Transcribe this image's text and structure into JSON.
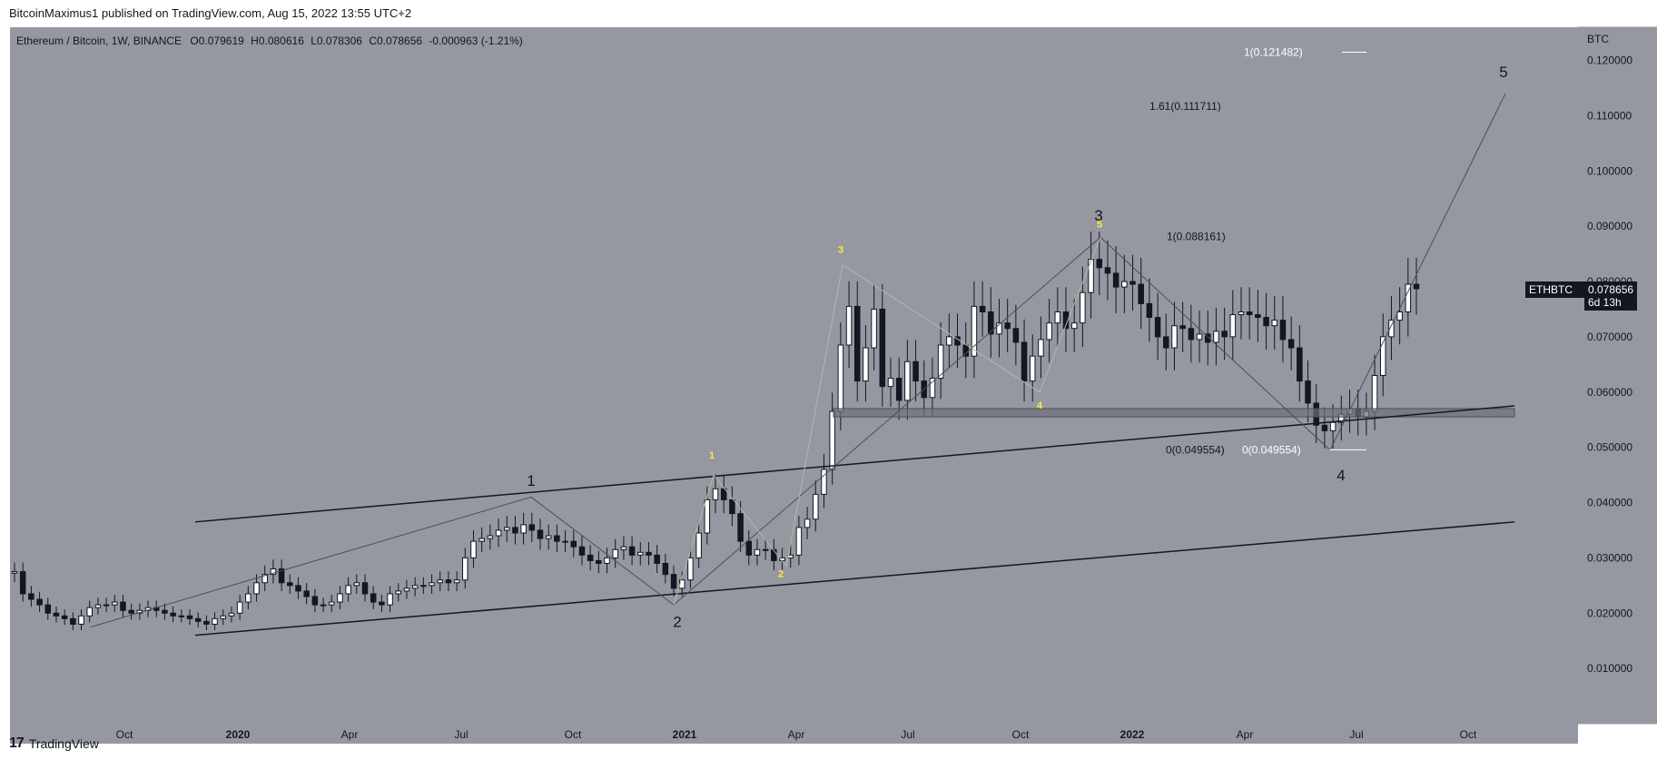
{
  "header": {
    "publisher": "BitcoinMaximus1 published on TradingView.com, Aug 15, 2022 13:55 UTC+2"
  },
  "legend": {
    "symbol": "Ethereum / Bitcoin, 1W, BINANCE",
    "open_label": "O",
    "open": "0.079619",
    "high_label": "H",
    "high": "0.080616",
    "low_label": "L",
    "low": "0.078306",
    "close_label": "C",
    "close": "0.078656",
    "change": "-0.000963 (-1.21%)"
  },
  "axis": {
    "currency": "BTC",
    "ticks": [
      "0.120000",
      "0.110000",
      "0.100000",
      "0.090000",
      "0.080000",
      "0.070000",
      "0.060000",
      "0.050000",
      "0.040000",
      "0.030000",
      "0.020000",
      "0.010000"
    ],
    "x_ticks": [
      "Oct",
      "2020",
      "Apr",
      "Jul",
      "Oct",
      "2021",
      "Apr",
      "Jul",
      "Oct",
      "2022",
      "Apr",
      "Jul",
      "Oct"
    ]
  },
  "price_label": {
    "symbol": "ETHBTC",
    "price": "0.078656",
    "countdown": "6d 13h"
  },
  "fib_labels": {
    "f1": "1(0.121482)",
    "f161": "1.61(0.111711)",
    "f1b": "1(0.088161)",
    "f0a": "0(0.049554)",
    "f0b": "0(0.049554)"
  },
  "wave_labels": {
    "main": [
      "1",
      "2",
      "3",
      "4",
      "5"
    ],
    "sub": [
      "1",
      "2",
      "3",
      "4",
      "5"
    ]
  },
  "footer": {
    "brand": "TradingView"
  },
  "colors": {
    "bg": "#9598a1",
    "up": "#ffffff",
    "down": "#131722",
    "wick": "#131722",
    "yellow": "#ffeb3b"
  },
  "chart_data": {
    "type": "candlestick",
    "title": "Ethereum / Bitcoin, 1W, BINANCE",
    "ylabel": "BTC",
    "ylim": [
      0.0,
      0.126
    ],
    "x_range": [
      "2019-07",
      "2022-12"
    ],
    "weekly_close_series": [
      0.0275,
      0.0235,
      0.0225,
      0.0215,
      0.02,
      0.0195,
      0.019,
      0.018,
      0.0195,
      0.021,
      0.0215,
      0.0215,
      0.022,
      0.0205,
      0.02,
      0.0205,
      0.021,
      0.0205,
      0.02,
      0.0195,
      0.0195,
      0.019,
      0.0185,
      0.018,
      0.019,
      0.0195,
      0.02,
      0.022,
      0.0235,
      0.0255,
      0.027,
      0.028,
      0.0255,
      0.025,
      0.024,
      0.023,
      0.0215,
      0.0215,
      0.022,
      0.0235,
      0.025,
      0.0255,
      0.0235,
      0.022,
      0.0215,
      0.0235,
      0.024,
      0.0245,
      0.025,
      0.025,
      0.0255,
      0.026,
      0.0255,
      0.026,
      0.03,
      0.033,
      0.0335,
      0.034,
      0.035,
      0.0355,
      0.0345,
      0.036,
      0.035,
      0.0335,
      0.034,
      0.033,
      0.033,
      0.032,
      0.0305,
      0.0295,
      0.029,
      0.03,
      0.0315,
      0.032,
      0.0305,
      0.031,
      0.0305,
      0.029,
      0.027,
      0.0245,
      0.026,
      0.03,
      0.0345,
      0.0405,
      0.0425,
      0.0405,
      0.038,
      0.033,
      0.0305,
      0.0315,
      0.0315,
      0.0295,
      0.03,
      0.0305,
      0.0355,
      0.037,
      0.0415,
      0.046,
      0.0565,
      0.0685,
      0.0755,
      0.062,
      0.068,
      0.075,
      0.061,
      0.0625,
      0.0585,
      0.0655,
      0.062,
      0.059,
      0.0625,
      0.0685,
      0.07,
      0.0685,
      0.0665,
      0.0755,
      0.0745,
      0.0705,
      0.0725,
      0.0715,
      0.069,
      0.062,
      0.0665,
      0.0695,
      0.0725,
      0.0745,
      0.0715,
      0.0725,
      0.078,
      0.084,
      0.0825,
      0.0815,
      0.079,
      0.08,
      0.0795,
      0.076,
      0.0735,
      0.07,
      0.068,
      0.072,
      0.0715,
      0.0695,
      0.0705,
      0.069,
      0.071,
      0.07,
      0.074,
      0.0745,
      0.074,
      0.0735,
      0.072,
      0.073,
      0.0695,
      0.068,
      0.062,
      0.058,
      0.054,
      0.053,
      0.0545,
      0.056,
      0.057,
      0.0555,
      0.0565,
      0.063,
      0.07,
      0.073,
      0.0745,
      0.0795,
      0.0787
    ],
    "trendlines": [
      {
        "name": "upper-channel",
        "from": [
          "2019-11",
          0.0365
        ],
        "to": [
          "2022-11",
          0.0575
        ]
      },
      {
        "name": "lower-channel",
        "from": [
          "2019-11",
          0.016
        ],
        "to": [
          "2022-11",
          0.0365
        ]
      }
    ],
    "support_zone": [
      0.0555,
      0.057
    ],
    "fib_levels": [
      {
        "label": "1(0.121482)",
        "value": 0.121482
      },
      {
        "label": "1.61(0.111711)",
        "value": 0.111711
      },
      {
        "label": "1(0.088161)",
        "value": 0.088161
      },
      {
        "label": "0(0.049554)",
        "value": 0.049554
      }
    ],
    "waves": [
      {
        "label": "1",
        "value": 0.041
      },
      {
        "label": "2",
        "value": 0.0215
      },
      {
        "label": "3",
        "value": 0.088
      },
      {
        "label": "4",
        "value": 0.0495
      },
      {
        "label": "5",
        "value": 0.114
      }
    ]
  }
}
